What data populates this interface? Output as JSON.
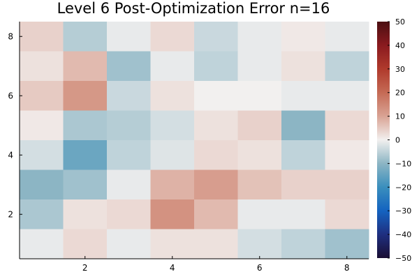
{
  "chart_data": {
    "type": "heatmap",
    "title": "Level 6 Post-Optimization Error n=16",
    "xlabel": "",
    "ylabel": "",
    "x_ticks": [
      "2",
      "4",
      "6",
      "8"
    ],
    "y_ticks": [
      "2",
      "4",
      "6",
      "8"
    ],
    "x_range": [
      0.5,
      8.5
    ],
    "y_range": [
      0.5,
      8.5
    ],
    "grid": false,
    "legend": "none",
    "colorbar": {
      "min": -50,
      "max": 50,
      "ticks": [
        "50",
        "40",
        "30",
        "20",
        "10",
        "0",
        "−10",
        "−20",
        "−30",
        "−40",
        "−50"
      ],
      "placement": "right",
      "colorscale": [
        [
          -50,
          "#1a0e33"
        ],
        [
          -40,
          "#1f2f80"
        ],
        [
          -30,
          "#1463c0"
        ],
        [
          -20,
          "#3a8fbd"
        ],
        [
          -10,
          "#8cb5c4"
        ],
        [
          0,
          "#f2f0ef"
        ],
        [
          10,
          "#d9a394"
        ],
        [
          20,
          "#c56a55"
        ],
        [
          30,
          "#b03a2c"
        ],
        [
          40,
          "#8a1a1f"
        ],
        [
          50,
          "#4b0f12"
        ]
      ]
    },
    "rows_top_to_bottom": [
      {
        "y": 8,
        "values": [
          4,
          -6,
          -1,
          3,
          -4,
          -1,
          1,
          -1
        ]
      },
      {
        "y": 7,
        "values": [
          2,
          7,
          -8,
          -1,
          -5,
          -1,
          2,
          -5
        ]
      },
      {
        "y": 6,
        "values": [
          5,
          12,
          -4,
          2,
          0,
          0,
          -1,
          -1
        ]
      },
      {
        "y": 5,
        "values": [
          1,
          -7,
          -6,
          -3,
          2,
          4,
          -10,
          3
        ]
      },
      {
        "y": 4,
        "values": [
          -3,
          -14,
          -5,
          -2,
          3,
          2,
          -5,
          1
        ]
      },
      {
        "y": 3,
        "values": [
          -10,
          -8,
          -1,
          8,
          11,
          6,
          4,
          4
        ]
      },
      {
        "y": 2,
        "values": [
          -7,
          2,
          3,
          13,
          7,
          -1,
          -1,
          3
        ]
      },
      {
        "y": 1,
        "values": [
          -1,
          3,
          -1,
          2,
          2,
          -3,
          -5,
          -8
        ]
      }
    ]
  }
}
